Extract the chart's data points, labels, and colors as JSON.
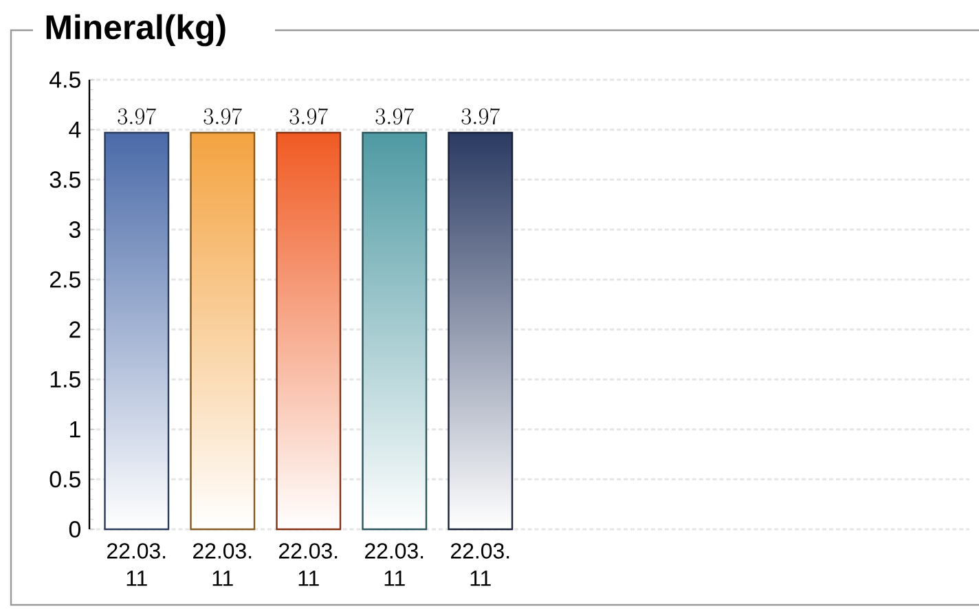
{
  "chart_data": {
    "type": "bar",
    "title": "Mineral(kg)",
    "categories": [
      "22.03. 11",
      "22.03. 11",
      "22.03. 11",
      "22.03. 11",
      "22.03. 11"
    ],
    "values": [
      3.97,
      3.97,
      3.97,
      3.97,
      3.97
    ],
    "colors": [
      "#4a6aa8",
      "#f4a340",
      "#f05a22",
      "#4f9aa3",
      "#2a3a62"
    ],
    "ylim": [
      0,
      4.5
    ],
    "yticks": [
      0,
      0.5,
      1,
      1.5,
      2,
      2.5,
      3,
      3.5,
      4,
      4.5
    ],
    "grid": "y",
    "data_labels": true
  }
}
